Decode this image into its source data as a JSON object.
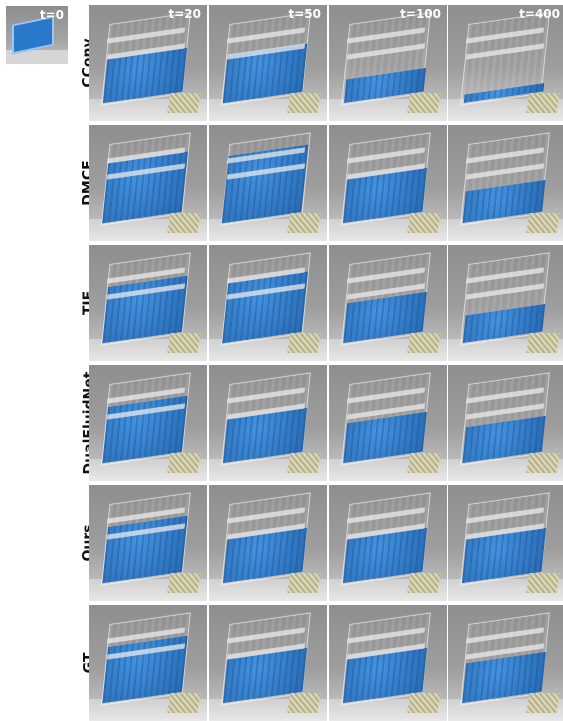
{
  "initial_frame": {
    "time_label": "t=0"
  },
  "time_labels": [
    "t=20",
    "t=50",
    "t=100",
    "t=400"
  ],
  "methods": [
    {
      "label": "CConv",
      "fill": [
        0.55,
        0.6,
        0.3,
        0.1
      ]
    },
    {
      "label": "DMCF",
      "fill": [
        0.75,
        0.85,
        0.55,
        0.4
      ]
    },
    {
      "label": "TIE",
      "fill": [
        0.7,
        0.75,
        0.5,
        0.35
      ]
    },
    {
      "label": "DualFluidNet",
      "fill": [
        0.7,
        0.55,
        0.5,
        0.45
      ]
    },
    {
      "label": "Ours",
      "fill": [
        0.7,
        0.55,
        0.55,
        0.55
      ]
    },
    {
      "label": "GT",
      "fill": [
        0.7,
        0.55,
        0.55,
        0.5
      ]
    }
  ],
  "colors": {
    "fluid": "#2a78c9",
    "background": "#9e9e9e"
  }
}
